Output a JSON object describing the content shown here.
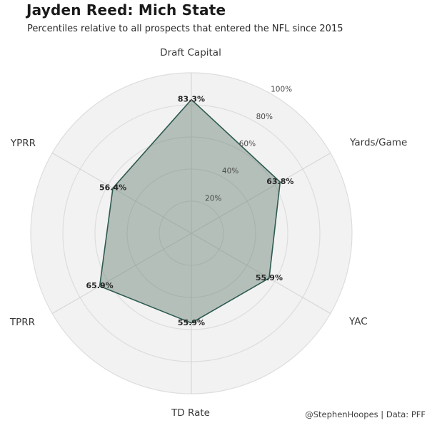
{
  "header": {
    "title": "Jayden Reed: Mich State",
    "subtitle": "Percentiles relative to all prospects that entered the NFL since 2015"
  },
  "footer": {
    "credit": "@StephenHoopes | Data: PFF"
  },
  "chart_data": {
    "type": "radar",
    "categories": [
      "Draft Capital",
      "Yards/Game",
      "YAC",
      "TD Rate",
      "TPRR",
      "YPRR"
    ],
    "values": [
      83.3,
      63.8,
      55.9,
      55.9,
      65.9,
      56.4
    ],
    "value_labels": [
      "83.3%",
      "63.8%",
      "55.9%",
      "55.9%",
      "65.9%",
      "56.4%"
    ],
    "radial_ticks": [
      "20%",
      "40%",
      "60%",
      "80%",
      "100%"
    ],
    "radial_range": [
      0,
      100
    ],
    "tick_step": 20,
    "grid": true,
    "legend": "none",
    "colors": {
      "series_fill": "rgba(104,129,117,0.45)",
      "series_stroke": "#2e5a50",
      "panel": "#f2f2f2",
      "grid_line": "#dddddd",
      "spoke_line": "#d6d6d6",
      "axis_label": "#3a3a3a",
      "tick_label": "#4a4a4a",
      "value_label": "#262626",
      "background": "#ffffff"
    }
  }
}
